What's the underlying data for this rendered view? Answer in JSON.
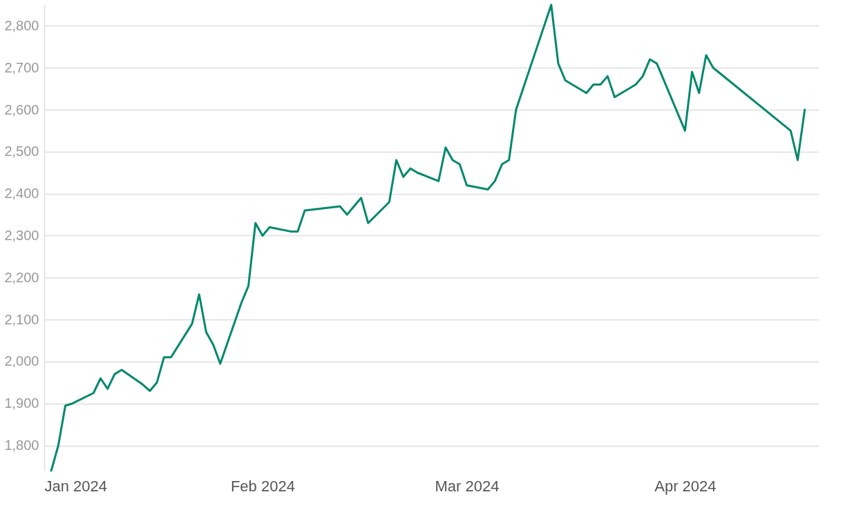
{
  "chart_data": {
    "type": "line",
    "x": [
      "2024-01-02",
      "2024-01-03",
      "2024-01-04",
      "2024-01-05",
      "2024-01-08",
      "2024-01-09",
      "2024-01-10",
      "2024-01-11",
      "2024-01-12",
      "2024-01-15",
      "2024-01-16",
      "2024-01-17",
      "2024-01-18",
      "2024-01-19",
      "2024-01-22",
      "2024-01-23",
      "2024-01-24",
      "2024-01-25",
      "2024-01-26",
      "2024-01-29",
      "2024-01-30",
      "2024-01-31",
      "2024-02-01",
      "2024-02-02",
      "2024-02-05",
      "2024-02-06",
      "2024-02-07",
      "2024-02-12",
      "2024-02-13",
      "2024-02-15",
      "2024-02-16",
      "2024-02-19",
      "2024-02-20",
      "2024-02-21",
      "2024-02-22",
      "2024-02-23",
      "2024-02-26",
      "2024-02-27",
      "2024-02-28",
      "2024-02-29",
      "2024-03-01",
      "2024-03-04",
      "2024-03-05",
      "2024-03-06",
      "2024-03-07",
      "2024-03-08",
      "2024-03-13",
      "2024-03-14",
      "2024-03-15",
      "2024-03-18",
      "2024-03-19",
      "2024-03-20",
      "2024-03-21",
      "2024-03-22",
      "2024-03-25",
      "2024-03-26",
      "2024-03-27",
      "2024-03-28",
      "2024-04-01",
      "2024-04-02",
      "2024-04-03",
      "2024-04-04",
      "2024-04-05",
      "2024-04-16",
      "2024-04-17",
      "2024-04-18"
    ],
    "series": [
      {
        "color": "#00886c",
        "values": [
          1740,
          1800,
          1895,
          1900,
          1925,
          1960,
          1935,
          1970,
          1980,
          1945,
          1930,
          1950,
          2010,
          2010,
          2090,
          2160,
          2070,
          2040,
          1995,
          2140,
          2180,
          2330,
          2300,
          2320,
          2310,
          2310,
          2360,
          2370,
          2350,
          2390,
          2330,
          2380,
          2480,
          2440,
          2460,
          2450,
          2430,
          2510,
          2480,
          2470,
          2420,
          2410,
          2430,
          2470,
          2480,
          2600,
          2850,
          2710,
          2670,
          2640,
          2660,
          2660,
          2680,
          2630,
          2660,
          2680,
          2720,
          2710,
          2550,
          2690,
          2640,
          2730,
          2700,
          2550,
          2480,
          2600
        ]
      }
    ],
    "xlim": [
      "2024-01-01",
      "2024-04-20"
    ],
    "xticks": [
      {
        "value": "2024-01-01",
        "label": "Jan 2024"
      },
      {
        "value": "2024-02-01",
        "label": "Feb 2024"
      },
      {
        "value": "2024-03-01",
        "label": "Mar 2024"
      },
      {
        "value": "2024-04-01",
        "label": "Apr 2024"
      }
    ],
    "ylim": [
      1740,
      2850
    ],
    "yticks": [
      {
        "value": 1800,
        "label": "1,800"
      },
      {
        "value": 1900,
        "label": "1,900"
      },
      {
        "value": 2000,
        "label": "2,000"
      },
      {
        "value": 2100,
        "label": "2,100"
      },
      {
        "value": 2200,
        "label": "2,200"
      },
      {
        "value": 2300,
        "label": "2,300"
      },
      {
        "value": 2400,
        "label": "2,400"
      },
      {
        "value": 2500,
        "label": "2,500"
      },
      {
        "value": 2600,
        "label": "2,600"
      },
      {
        "value": 2700,
        "label": "2,700"
      },
      {
        "value": 2800,
        "label": "2,800"
      }
    ],
    "grid": "y",
    "marker": "none",
    "line_style": "solid"
  }
}
